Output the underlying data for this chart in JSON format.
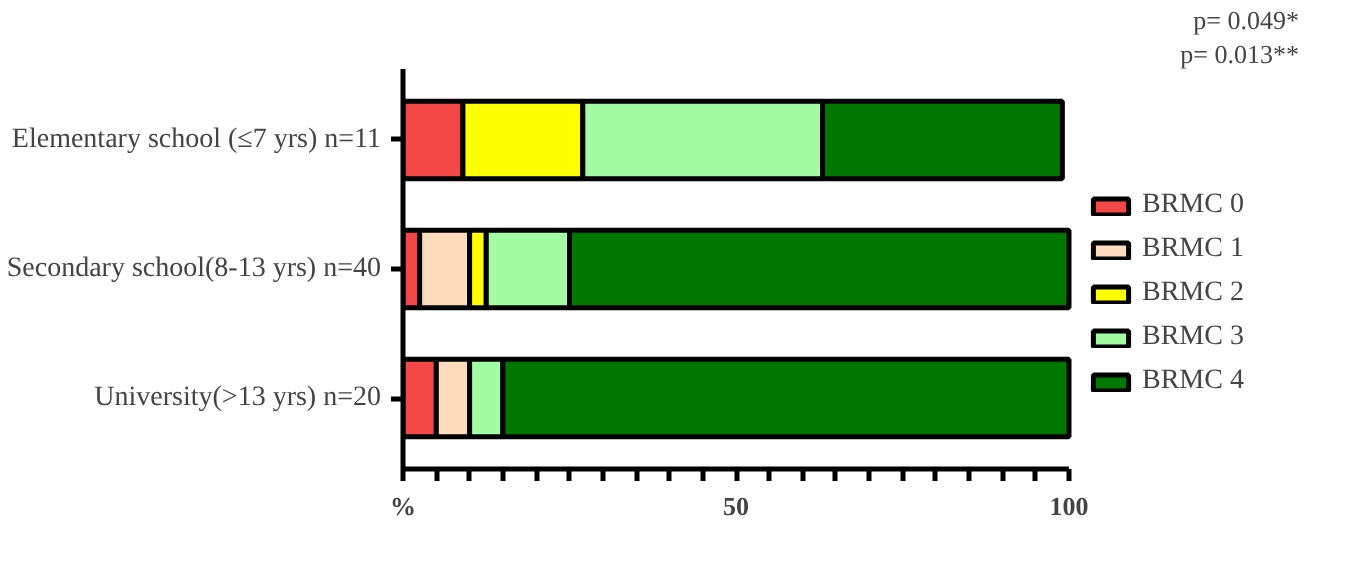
{
  "chart_data": {
    "type": "bar",
    "orientation": "horizontal",
    "stacked": true,
    "categories": [
      "Elementary school (≤7 yrs) n=11",
      "Secondary school(8-13 yrs) n=40",
      "University(>13 yrs) n=20"
    ],
    "series": [
      {
        "name": "BRMC 0",
        "color": "#f44848",
        "values": [
          9,
          2.5,
          5
        ]
      },
      {
        "name": "BRMC 1",
        "color": "#fddcbd",
        "values": [
          0,
          7.5,
          5
        ]
      },
      {
        "name": "BRMC 2",
        "color": "#ffff00",
        "values": [
          18,
          2.5,
          0
        ]
      },
      {
        "name": "BRMC 3",
        "color": "#a3fca3",
        "values": [
          36,
          12.5,
          5
        ]
      },
      {
        "name": "BRMC 4",
        "color": "#007800",
        "values": [
          36,
          75,
          85
        ]
      }
    ],
    "xlim": [
      0,
      100
    ],
    "xticks": [
      {
        "value": 0,
        "label": "%"
      },
      {
        "value": 5,
        "label": null
      },
      {
        "value": 10,
        "label": null
      },
      {
        "value": 15,
        "label": null
      },
      {
        "value": 20,
        "label": null
      },
      {
        "value": 25,
        "label": null
      },
      {
        "value": 30,
        "label": null
      },
      {
        "value": 35,
        "label": null
      },
      {
        "value": 40,
        "label": null
      },
      {
        "value": 45,
        "label": null
      },
      50,
      {
        "value": 55,
        "label": null
      },
      {
        "value": 60,
        "label": null
      },
      {
        "value": 65,
        "label": null
      },
      {
        "value": 70,
        "label": null
      },
      {
        "value": 75,
        "label": null
      },
      {
        "value": 80,
        "label": null
      },
      {
        "value": 85,
        "label": null
      },
      {
        "value": 90,
        "label": null
      },
      {
        "value": 95,
        "label": null
      },
      100
    ],
    "annotations": [
      "p= 0.049*",
      "p= 0.013**"
    ],
    "legend": "right",
    "grid": false
  }
}
